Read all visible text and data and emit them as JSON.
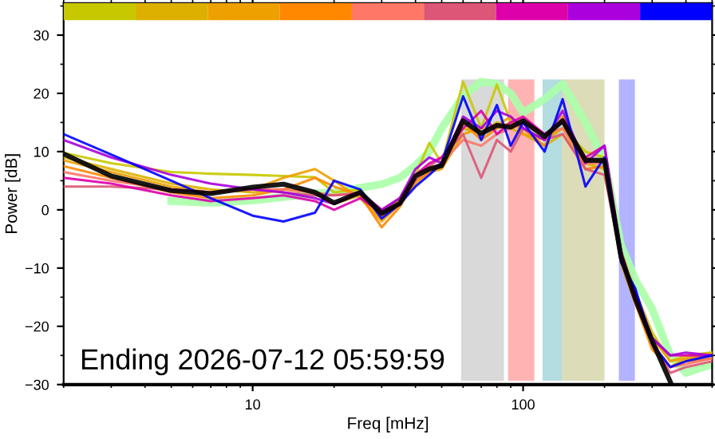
{
  "chart_data": {
    "type": "line",
    "xlabel": "Freq [mHz]",
    "ylabel": "Power [dB]",
    "log": "x",
    "xlim": [
      2,
      500
    ],
    "xticks": [
      10,
      100
    ],
    "ylim": [
      -30,
      35.5
    ],
    "yticks": [
      -30,
      -20,
      -10,
      0,
      10,
      20,
      30
    ],
    "grid": false,
    "legend": false,
    "marker": "none",
    "line_style": "solid",
    "x": [
      2,
      3,
      5,
      7,
      10,
      13,
      17,
      20,
      25,
      30,
      35,
      40,
      45,
      50,
      60,
      70,
      80,
      90,
      100,
      120,
      140,
      170,
      200,
      230,
      260,
      300,
      350,
      400,
      500
    ],
    "series": [
      {
        "color": "#aaffaa",
        "values": [
          null,
          null,
          1.5,
          1.2,
          1.6,
          2.2,
          2.8,
          3.0,
          3.8,
          4.4,
          5.5,
          7.6,
          10,
          14,
          19.5,
          22,
          21.6,
          20,
          16.7,
          19,
          21.6,
          15,
          8.5,
          -6,
          -12,
          -17,
          -25,
          -28,
          -26.5
        ]
      },
      {
        "color": "#c8c800",
        "values": [
          9.8,
          8,
          6.5,
          6.2,
          6,
          5.8,
          5.6,
          3,
          3.5,
          -1,
          2,
          6,
          11.5,
          8,
          22,
          14,
          21.5,
          15,
          14,
          12,
          14,
          10,
          9,
          -7,
          -14,
          -21,
          -26,
          -25,
          -24.5
        ]
      },
      {
        "color": "#ddb000",
        "values": [
          9,
          7,
          4.5,
          3.5,
          3,
          3.5,
          3,
          1,
          2.5,
          -1.5,
          1.5,
          5,
          7,
          7.5,
          14,
          13,
          15,
          14,
          13,
          11,
          13,
          8,
          7,
          -9,
          -16,
          -23,
          -27,
          -25.5,
          -24.5
        ]
      },
      {
        "color": "#eea000",
        "values": [
          8.5,
          6.5,
          4,
          3,
          3.5,
          5.5,
          7,
          5,
          2,
          -2,
          1,
          4.5,
          6.5,
          7,
          13,
          14,
          14.5,
          16,
          13,
          12,
          14,
          9,
          8,
          -8,
          -15,
          -22,
          -26,
          -25.5,
          -25
        ]
      },
      {
        "color": "#ff8800",
        "values": [
          7.5,
          5.5,
          3,
          2,
          2.5,
          3.5,
          5.5,
          4,
          2.5,
          -3,
          0.5,
          5,
          6.5,
          7.5,
          15,
          12,
          14,
          15,
          14,
          11,
          16,
          7,
          7.5,
          -9,
          -16,
          -24,
          -27,
          -26,
          -25.5
        ]
      },
      {
        "color": "#ff7766",
        "values": [
          6.5,
          5,
          3.5,
          3,
          3.5,
          3.5,
          3,
          2.5,
          3,
          -1,
          1,
          5,
          7,
          8,
          12,
          11,
          13,
          14,
          15,
          13,
          14,
          8,
          8,
          -8,
          -16,
          -23,
          -27,
          -26.5,
          -25.5
        ]
      },
      {
        "color": "#dd5577",
        "values": [
          4,
          4,
          3.5,
          3,
          3.5,
          3,
          2.5,
          2.5,
          2.8,
          0,
          2,
          6,
          7.5,
          9,
          13,
          5.5,
          12,
          10,
          14,
          12,
          13,
          7,
          6,
          -8,
          -15,
          -23,
          -28,
          -27,
          -26
        ]
      },
      {
        "color": "#dd00aa",
        "values": [
          5.5,
          4.5,
          2.5,
          1.5,
          2,
          2.5,
          1.5,
          0,
          2,
          -0.5,
          1,
          6,
          8,
          9,
          14,
          17,
          13,
          15,
          16,
          13,
          15,
          9,
          11,
          -7,
          -15,
          -22,
          -25,
          -25,
          -25
        ]
      },
      {
        "color": "#aa00dd",
        "values": [
          12,
          9,
          6,
          4.5,
          3.5,
          3,
          2,
          1,
          3,
          0,
          2,
          7,
          9,
          8,
          16,
          14,
          17,
          16,
          14,
          12,
          17,
          8,
          11,
          -8,
          -14,
          -22,
          -25,
          -24.5,
          -25
        ]
      },
      {
        "color": "#0000ff",
        "values": [
          13,
          9.5,
          5,
          2,
          -1,
          -2,
          -0.5,
          5,
          3.5,
          -1.5,
          1,
          4,
          6,
          8,
          19.5,
          12,
          18,
          11,
          15,
          10,
          19,
          4,
          9,
          -9,
          -13.5,
          -23,
          -27,
          -26,
          -25
        ]
      },
      {
        "color": "#000000",
        "values": [
          9.6,
          5.8,
          3.3,
          2.8,
          3.9,
          4.4,
          3.0,
          1.2,
          3.0,
          -0.6,
          1.1,
          5.8,
          7.0,
          7.6,
          15.3,
          13.1,
          14.5,
          14.2,
          15.3,
          12.6,
          15.3,
          8.5,
          8.5,
          -8,
          -15.3,
          -22.5,
          -29.5,
          null,
          null
        ]
      }
    ],
    "bands": [
      {
        "axis": "x",
        "from": 59,
        "to": 85,
        "color": "#d9d9d9"
      },
      {
        "axis": "x",
        "from": 88,
        "to": 110,
        "color": "#ffb3b3"
      },
      {
        "axis": "x",
        "from": 118,
        "to": 139,
        "color": "#b3dde0"
      },
      {
        "axis": "x",
        "from": 139,
        "to": 200,
        "color": "#dcdcb8"
      },
      {
        "axis": "x",
        "from": 226,
        "to": 259,
        "color": "#b3b3ff"
      }
    ],
    "annotations": [
      "Ending 2026-07-12 05:59:59"
    ]
  }
}
